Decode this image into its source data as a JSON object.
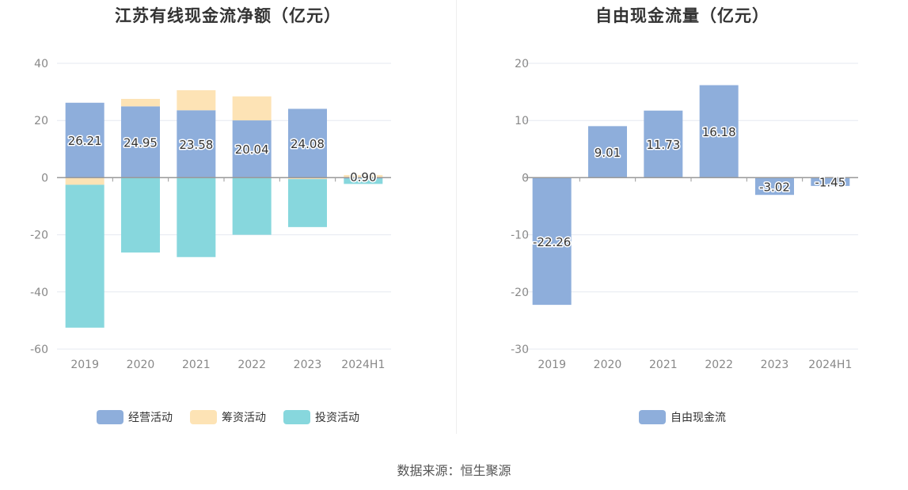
{
  "source_text": "数据来源：恒生聚源",
  "chart_data": [
    {
      "type": "bar",
      "stacked": true,
      "title": "江苏有线现金流净额（亿元）",
      "categories": [
        "2019",
        "2020",
        "2021",
        "2022",
        "2023",
        "2024H1"
      ],
      "ylim": [
        -60,
        40
      ],
      "yticks": [
        40,
        20,
        0,
        -20,
        -40,
        -60
      ],
      "legend_position": "bottom",
      "series": [
        {
          "name": "经营活动",
          "color": "#8eaedb",
          "values": [
            26.21,
            24.95,
            23.58,
            20.04,
            24.08,
            -0.3
          ],
          "labels": [
            "26.21",
            "24.95",
            "23.58",
            "20.04",
            "24.08",
            ""
          ]
        },
        {
          "name": "筹资活动",
          "color": "#fde3b5",
          "values": [
            -2.5,
            2.6,
            7.0,
            8.4,
            -0.5,
            0.9
          ],
          "labels": [
            "",
            "",
            "",
            "",
            "",
            "0.90"
          ]
        },
        {
          "name": "投资活动",
          "color": "#87d7dd",
          "values": [
            -50.0,
            -26.2,
            -27.8,
            -20.0,
            -16.8,
            -1.9
          ],
          "labels": [
            "",
            "",
            "",
            "",
            "",
            ""
          ]
        }
      ]
    },
    {
      "type": "bar",
      "title": "自由现金流量（亿元）",
      "categories": [
        "2019",
        "2020",
        "2021",
        "2022",
        "2023",
        "2024H1"
      ],
      "ylim": [
        -30,
        20
      ],
      "yticks": [
        20,
        10,
        0,
        -10,
        -20,
        -30
      ],
      "legend_position": "bottom",
      "series": [
        {
          "name": "自由现金流",
          "color": "#8eaedb",
          "values": [
            -22.26,
            9.01,
            11.73,
            16.18,
            -3.02,
            -1.45
          ],
          "labels": [
            "-22.26",
            "9.01",
            "11.73",
            "16.18",
            "-3.02",
            "-1.45"
          ]
        }
      ]
    }
  ]
}
